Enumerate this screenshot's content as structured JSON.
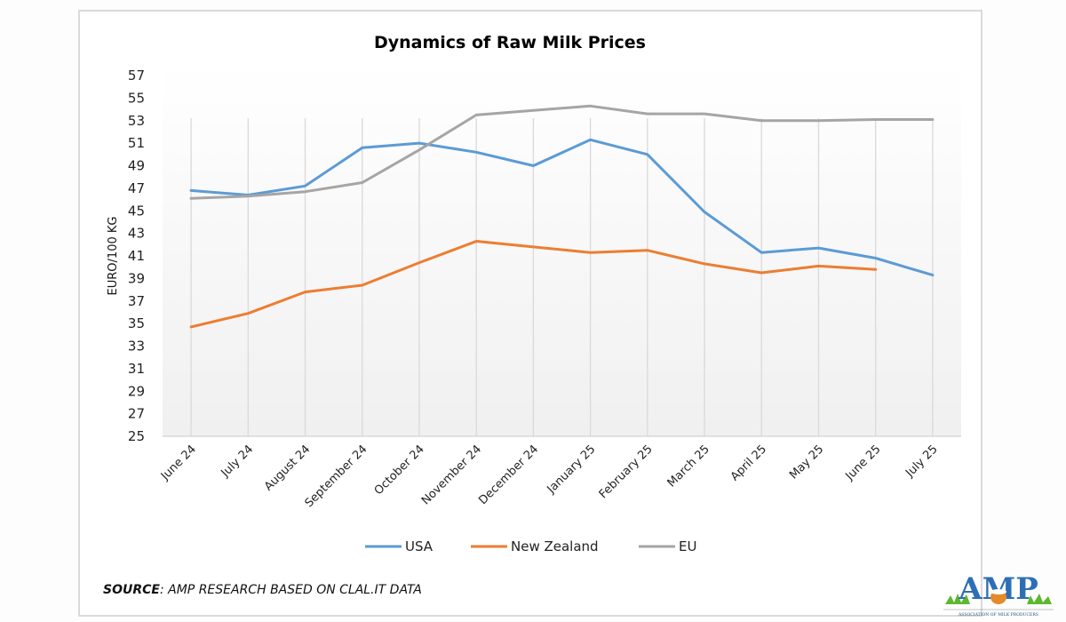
{
  "chart_data": {
    "type": "line",
    "title": "Dynamics of Raw Milk Prices",
    "xlabel": "",
    "ylabel": "EURO/100 KG",
    "ylim": [
      25,
      57
    ],
    "yticks": [
      25,
      27,
      29,
      31,
      33,
      35,
      37,
      39,
      41,
      43,
      45,
      47,
      49,
      51,
      53,
      55,
      57
    ],
    "grid": "vertical",
    "legend": "bottom",
    "categories": [
      "June 24",
      "July 24",
      "August 24",
      "September 24",
      "October 24",
      "November 24",
      "December 24",
      "January 25",
      "February 25",
      "March 25",
      "April 25",
      "May 25",
      "June 25",
      "July 25"
    ],
    "series": [
      {
        "name": "USA",
        "color": "#5b9bd5",
        "values": [
          46.8,
          46.4,
          47.2,
          50.6,
          51.0,
          50.2,
          49.0,
          51.3,
          50.0,
          44.9,
          41.3,
          41.7,
          40.8,
          39.3
        ]
      },
      {
        "name": "New Zealand",
        "color": "#ed7d31",
        "values": [
          34.7,
          35.9,
          37.8,
          38.4,
          40.4,
          42.3,
          41.8,
          41.3,
          41.5,
          40.3,
          39.5,
          40.1,
          39.8,
          null
        ]
      },
      {
        "name": "EU",
        "color": "#a5a5a5",
        "values": [
          46.1,
          46.3,
          46.7,
          47.5,
          50.4,
          53.5,
          53.9,
          54.3,
          53.6,
          53.6,
          53.0,
          53.0,
          53.1,
          53.1
        ]
      }
    ]
  },
  "source": {
    "label": "SOURCE",
    "text": ": AMP RESEARCH BASED ON CLAL.IT DATA"
  },
  "logo": {
    "text": "AMP",
    "subtitle": "ASSOCIATION OF MILK PRODUCERS"
  }
}
